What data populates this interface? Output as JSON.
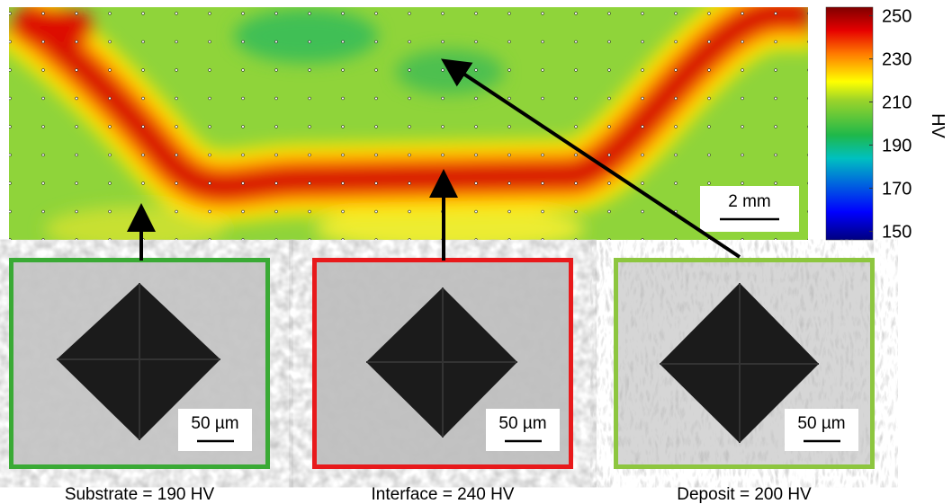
{
  "colorbar": {
    "label": "HV",
    "lim": [
      146,
      254
    ],
    "ticks": [
      150,
      170,
      190,
      210,
      230,
      250
    ]
  },
  "map": {
    "scale_bar": "2 mm"
  },
  "panels": [
    {
      "scale_bar": "50 µm",
      "caption": "Substrate = 190 HV"
    },
    {
      "scale_bar": "50 µm",
      "caption": "Interface = 240 HV"
    },
    {
      "scale_bar": "50 µm",
      "caption": "Deposit = 200 HV"
    }
  ]
}
